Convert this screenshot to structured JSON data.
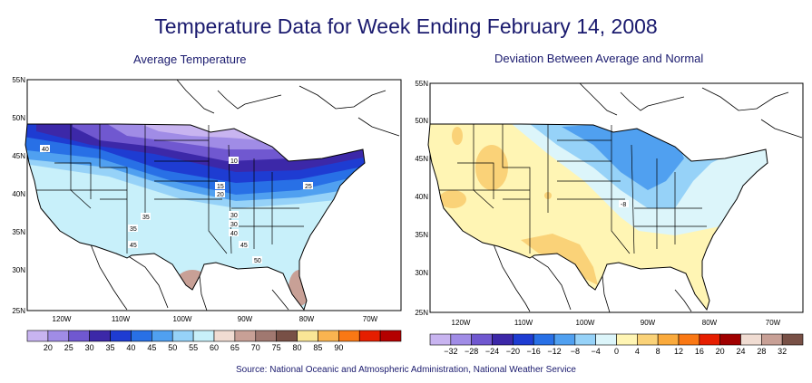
{
  "title": "Temperature Data for Week Ending February 14, 2008",
  "source": "Source:  National Oceanic and Atmospheric Administration, National Weather Service",
  "left_map": {
    "subtitle": "Average Temperature",
    "lat_labels": [
      "55N",
      "50N",
      "45N",
      "40N",
      "35N",
      "30N",
      "25N"
    ],
    "lon_labels": [
      "120W",
      "110W",
      "100W",
      "90W",
      "80W",
      "70W"
    ],
    "contour_labels": [
      "40",
      "10",
      "15",
      "20",
      "25",
      "30",
      "35",
      "35",
      "30",
      "40",
      "45",
      "45",
      "50"
    ],
    "legend": {
      "labels": [
        "20",
        "25",
        "30",
        "35",
        "40",
        "45",
        "50",
        "55",
        "60",
        "65",
        "70",
        "75",
        "80",
        "85",
        "90"
      ],
      "colors": [
        "#c8b4f0",
        "#a08ce6",
        "#7058d0",
        "#3c28a8",
        "#1e3cd2",
        "#2870e6",
        "#50a0f0",
        "#96d2f8",
        "#c8f0fa",
        "#f0dcd2",
        "#c8a096",
        "#a07870",
        "#785046",
        "#fae696",
        "#fab450",
        "#fa7814",
        "#e61e00",
        "#b40000"
      ]
    }
  },
  "right_map": {
    "subtitle": "Deviation Between Average and Normal",
    "lat_labels": [
      "55N",
      "50N",
      "45N",
      "40N",
      "35N",
      "30N",
      "25N"
    ],
    "lon_labels": [
      "120W",
      "110W",
      "100W",
      "90W",
      "80W",
      "70W"
    ],
    "contour_labels": [
      "-8"
    ],
    "legend": {
      "labels": [
        "−32",
        "−28",
        "−24",
        "−20",
        "−16",
        "−12",
        "−8",
        "−4",
        "0",
        "4",
        "8",
        "12",
        "16",
        "20",
        "24",
        "28",
        "32"
      ],
      "colors": [
        "#c8b4f0",
        "#a08ce6",
        "#7058d0",
        "#3c28a8",
        "#1e3cd2",
        "#2870e6",
        "#50a0f0",
        "#96d2f8",
        "#dcf5fa",
        "#fff5b4",
        "#fad278",
        "#faaa3c",
        "#fa7814",
        "#e61e00",
        "#a00000",
        "#f0dcd2",
        "#c8a096",
        "#785046"
      ]
    }
  }
}
